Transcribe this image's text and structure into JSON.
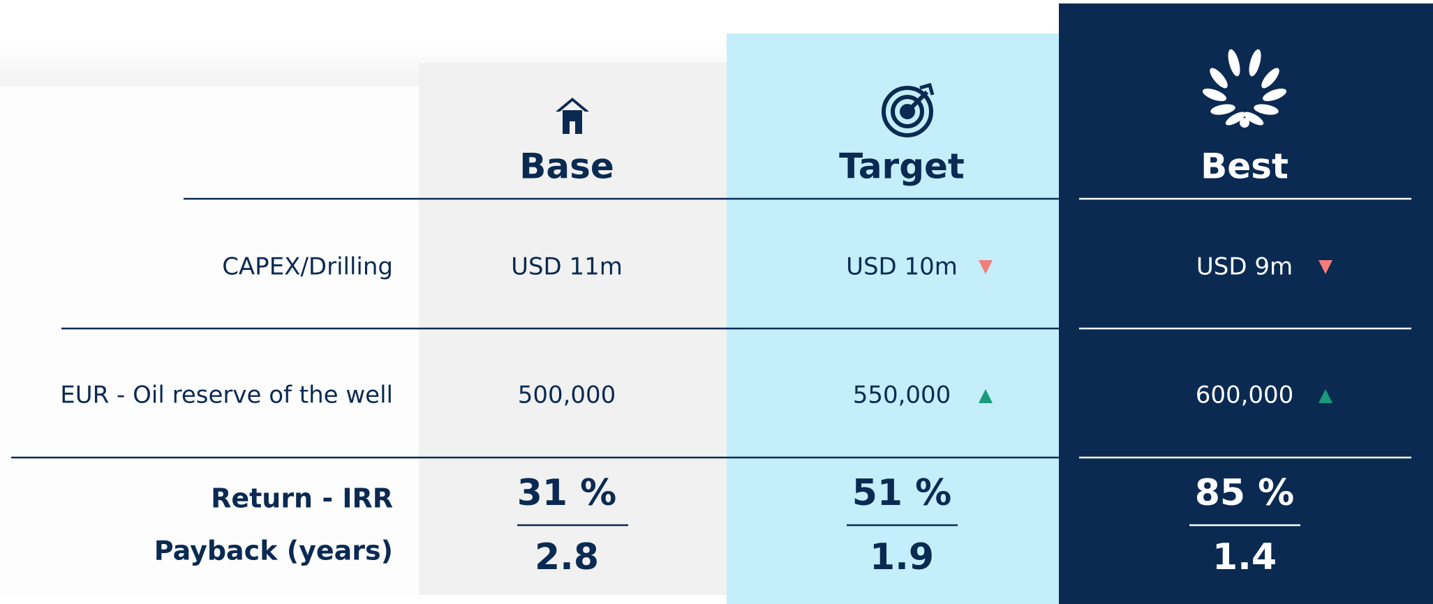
{
  "columns": [
    {
      "name": "Base"
    },
    {
      "name": "Target"
    },
    {
      "name": "Best"
    }
  ],
  "rows": [
    {
      "label": "CAPEX/Drilling",
      "values": [
        "USD 11m",
        "USD 10m",
        "USD 9m"
      ]
    },
    {
      "label": "EUR - Oil reserve of the well",
      "values": [
        "500,000",
        "550,000",
        "600,000"
      ]
    }
  ],
  "metrics": [
    {
      "label": "Return - IRR",
      "values": [
        "31 %",
        "51 %",
        "85 %"
      ]
    },
    {
      "label": "Payback (years)",
      "values": [
        "2.8",
        "1.9",
        "1.4"
      ]
    }
  ]
}
